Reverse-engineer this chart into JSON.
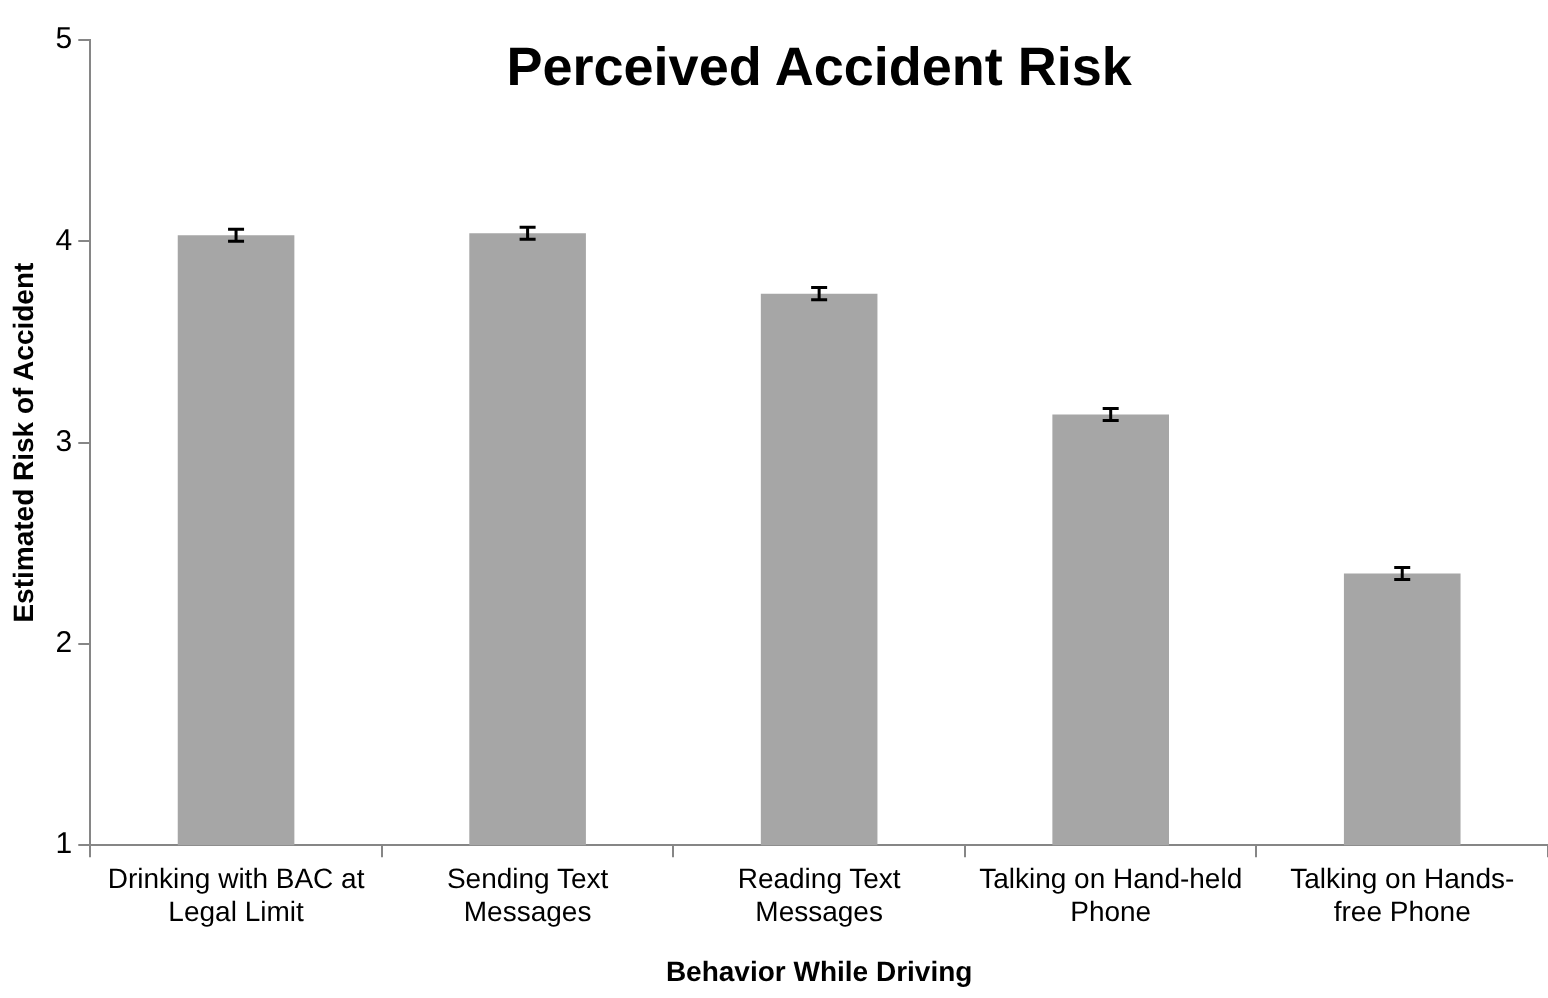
{
  "chart_data": {
    "type": "bar",
    "title": "Perceived Accident Risk",
    "xlabel": "Behavior While Driving",
    "ylabel": "Estimated Risk of Accident",
    "categories": [
      "Drinking with BAC at Legal Limit",
      "Sending Text Messages",
      "Reading Text Messages",
      "Talking on Hand-held Phone",
      "Talking on Hands-free Phone"
    ],
    "values": [
      4.03,
      4.04,
      3.74,
      3.14,
      2.35
    ],
    "errors": [
      0.03,
      0.03,
      0.03,
      0.03,
      0.03
    ],
    "color": "#a6a6a6",
    "ylim": [
      1,
      5
    ],
    "yticks": [
      1,
      2,
      3,
      4,
      5
    ],
    "grid": false
  }
}
